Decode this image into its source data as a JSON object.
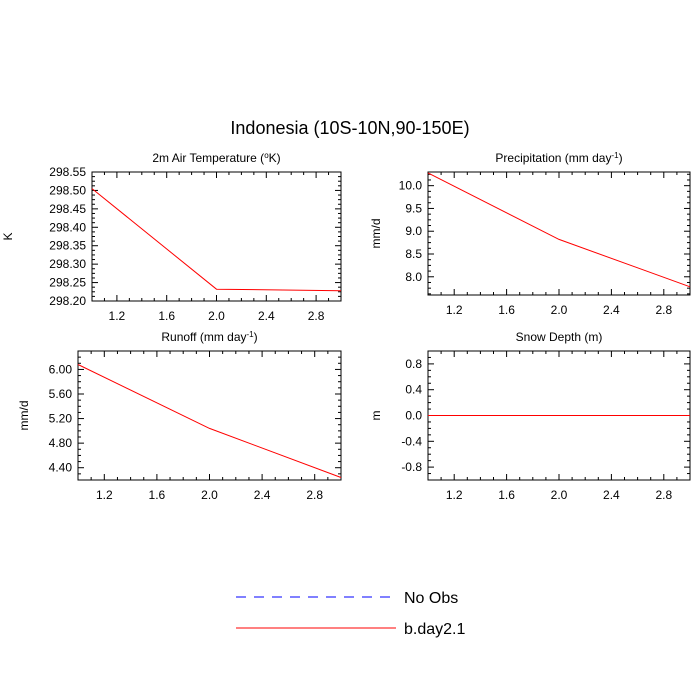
{
  "figure": {
    "title": "Indonesia (10S-10N,90-150E)"
  },
  "colors": {
    "model_line": "#ff0000",
    "obs_line": "#0000ff",
    "axes": "#000000"
  },
  "legend": {
    "placement": "bottom-center",
    "entries": [
      {
        "label": "No Obs",
        "style": "dashed",
        "color": "#0000ff"
      },
      {
        "label": "b.day2.1",
        "style": "solid",
        "color": "#ff0000"
      }
    ]
  },
  "chart_data": [
    {
      "type": "line",
      "title": "2m Air Temperature (",
      "title_sup": "o",
      "title_tail": "K)",
      "ylabel": "K",
      "xlim": [
        1.0,
        3.0
      ],
      "ylim": [
        298.2,
        298.55
      ],
      "xticks": [
        1.2,
        1.6,
        2.0,
        2.4,
        2.8
      ],
      "xtick_labels": [
        "1.2",
        "1.6",
        "2.0",
        "2.4",
        "2.8"
      ],
      "yticks": [
        298.2,
        298.25,
        298.3,
        298.35,
        298.4,
        298.45,
        298.5,
        298.55
      ],
      "ytick_labels": [
        "298.20",
        "298.25",
        "298.30",
        "298.35",
        "298.40",
        "298.45",
        "298.50",
        "298.55"
      ],
      "grid": false,
      "series": [
        {
          "name": "b.day2.1",
          "x": [
            1.0,
            2.0,
            3.0
          ],
          "y": [
            298.505,
            298.232,
            298.228
          ]
        }
      ]
    },
    {
      "type": "line",
      "title": "Precipitation (mm day",
      "title_sup": "-1",
      "title_tail": ")",
      "ylabel": "mm/d",
      "xlim": [
        1.0,
        3.0
      ],
      "ylim": [
        7.6,
        10.3
      ],
      "xticks": [
        1.2,
        1.6,
        2.0,
        2.4,
        2.8
      ],
      "xtick_labels": [
        "1.2",
        "1.6",
        "2.0",
        "2.4",
        "2.8"
      ],
      "yticks": [
        8.0,
        8.5,
        9.0,
        9.5,
        10.0
      ],
      "ytick_labels": [
        "8.0",
        "8.5",
        "9.0",
        "9.5",
        "10.0"
      ],
      "grid": false,
      "series": [
        {
          "name": "b.day2.1",
          "x": [
            1.0,
            2.0,
            3.0
          ],
          "y": [
            10.28,
            8.82,
            7.78
          ]
        }
      ]
    },
    {
      "type": "line",
      "title": "Runoff (mm day",
      "title_sup": "-1",
      "title_tail": ")",
      "ylabel": "mm/d",
      "xlim": [
        1.0,
        3.0
      ],
      "ylim": [
        4.2,
        6.3
      ],
      "xticks": [
        1.2,
        1.6,
        2.0,
        2.4,
        2.8
      ],
      "xtick_labels": [
        "1.2",
        "1.6",
        "2.0",
        "2.4",
        "2.8"
      ],
      "yticks": [
        4.4,
        4.8,
        5.2,
        5.6,
        6.0
      ],
      "ytick_labels": [
        "4.40",
        "4.80",
        "5.20",
        "5.60",
        "6.00"
      ],
      "grid": false,
      "series": [
        {
          "name": "b.day2.1",
          "x": [
            1.0,
            2.0,
            3.0
          ],
          "y": [
            6.08,
            5.04,
            4.24
          ]
        }
      ]
    },
    {
      "type": "line",
      "title": "Snow Depth (m)",
      "title_sup": "",
      "title_tail": "",
      "ylabel": "m",
      "xlim": [
        1.0,
        3.0
      ],
      "ylim": [
        -1.0,
        1.0
      ],
      "xticks": [
        1.2,
        1.6,
        2.0,
        2.4,
        2.8
      ],
      "xtick_labels": [
        "1.2",
        "1.6",
        "2.0",
        "2.4",
        "2.8"
      ],
      "yticks": [
        -0.8,
        -0.4,
        0.0,
        0.4,
        0.8
      ],
      "ytick_labels": [
        "-0.8",
        "-0.4",
        "0.0",
        "0.4",
        "0.8"
      ],
      "grid": false,
      "series": [
        {
          "name": "b.day2.1",
          "x": [
            1.0,
            2.0,
            3.0
          ],
          "y": [
            0.0,
            0.0,
            0.0
          ]
        }
      ]
    }
  ]
}
